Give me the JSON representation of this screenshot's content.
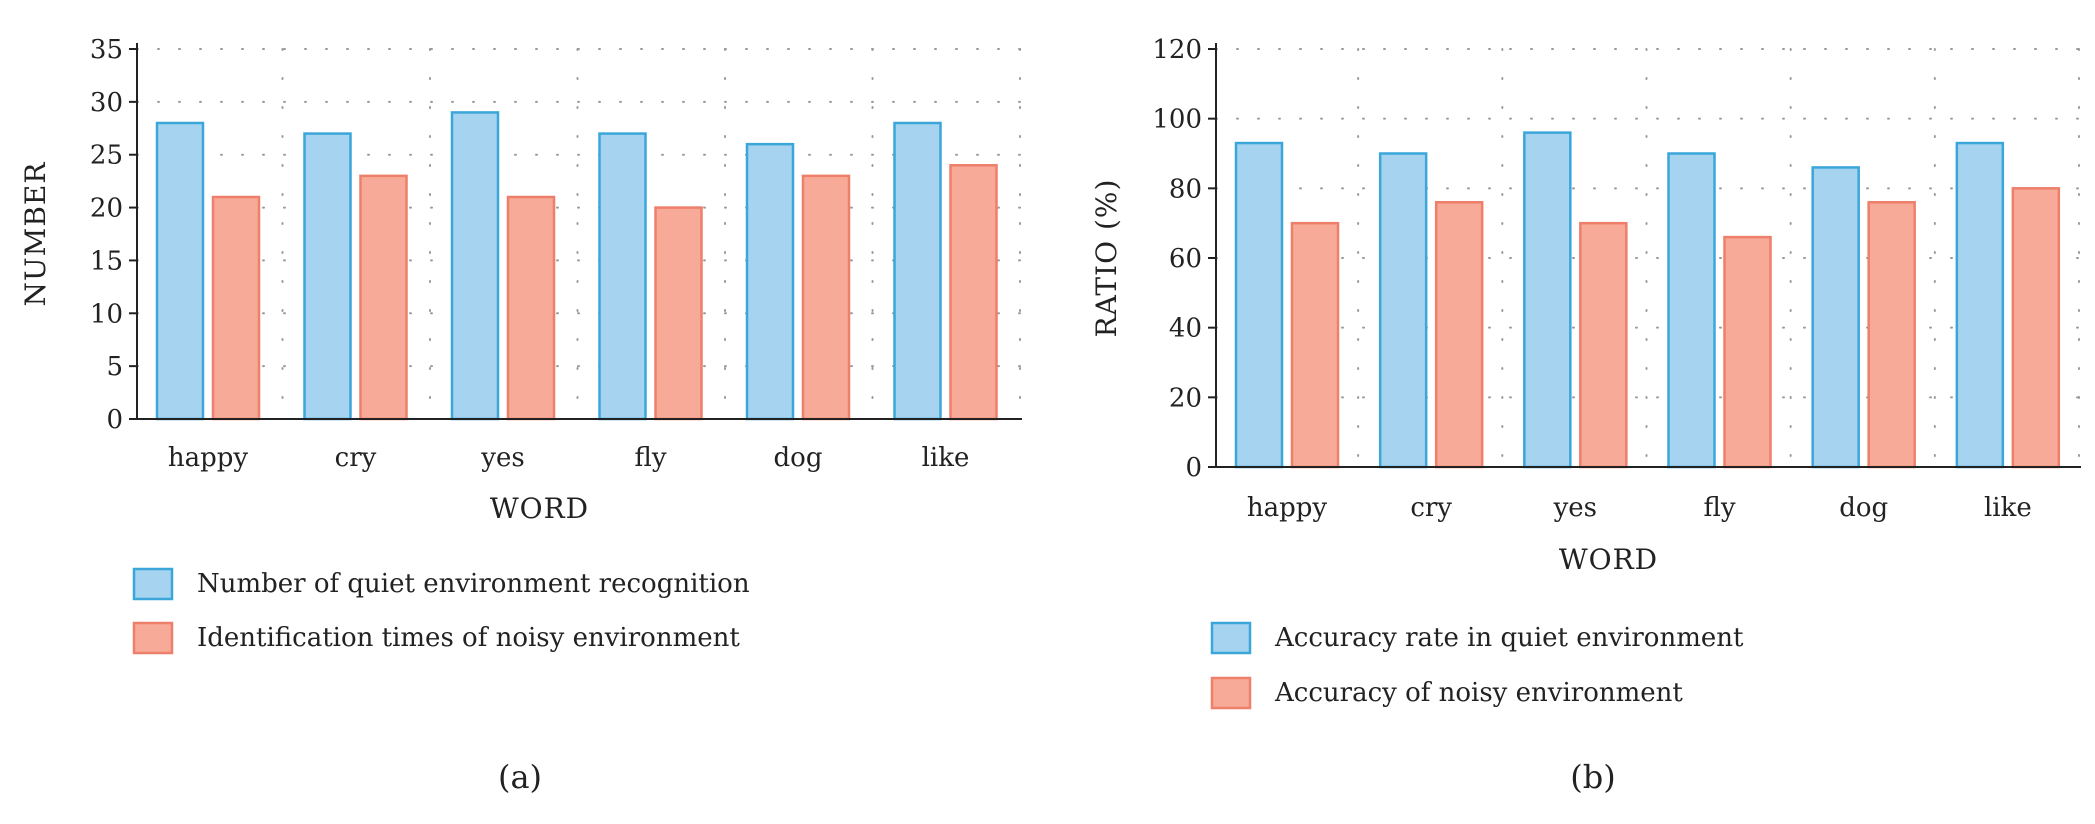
{
  "colors": {
    "quiet_fill": "#a6d3ef",
    "quiet_stroke": "#3aa6d9",
    "noisy_fill": "#f8aa98",
    "noisy_stroke": "#ee7f6a",
    "grid": "#9a9a9a",
    "axis": "#222222"
  },
  "chart_data": [
    {
      "type": "bar",
      "panel_label": "(a)",
      "categories": [
        "happy",
        "cry",
        "yes",
        "fly",
        "dog",
        "like"
      ],
      "xlabel": "WORD",
      "ylabel": "NUMBER",
      "ylim": [
        0,
        35
      ],
      "yticks": [
        0,
        5,
        10,
        15,
        20,
        25,
        30,
        35
      ],
      "grid": true,
      "legend_position": "bottom",
      "series": [
        {
          "name": "Number of quiet environment recognition",
          "values": [
            28,
            27,
            29,
            27,
            26,
            28
          ]
        },
        {
          "name": "Identification times of noisy environment",
          "values": [
            21,
            23,
            21,
            20,
            23,
            24
          ]
        }
      ]
    },
    {
      "type": "bar",
      "panel_label": "(b)",
      "categories": [
        "happy",
        "cry",
        "yes",
        "fly",
        "dog",
        "like"
      ],
      "xlabel": "WORD",
      "ylabel": "RATIO (%)",
      "ylim": [
        0,
        120
      ],
      "yticks": [
        0,
        20,
        40,
        60,
        80,
        100,
        120
      ],
      "grid": true,
      "legend_position": "bottom",
      "series": [
        {
          "name": "Accuracy rate in quiet environment",
          "values": [
            93,
            90,
            96,
            90,
            86,
            93
          ]
        },
        {
          "name": "Accuracy of noisy environment",
          "values": [
            70,
            76,
            70,
            66,
            76,
            80
          ]
        }
      ]
    }
  ]
}
